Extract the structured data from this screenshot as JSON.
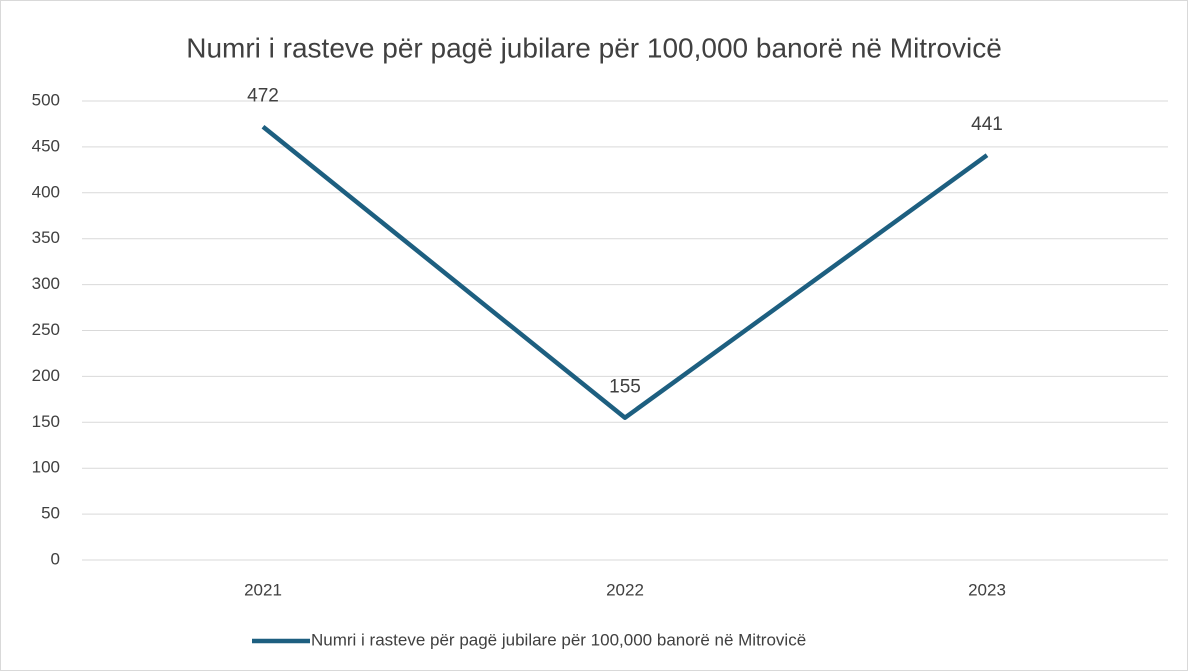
{
  "chart_data": {
    "type": "line",
    "title": "Numri i rasteve për pagë jubilare për 100,000 banorë në Mitrovicë",
    "categories": [
      "2021",
      "2022",
      "2023"
    ],
    "series": [
      {
        "name": "Numri i rasteve për pagë jubilare për 100,000 banorë në Mitrovicë",
        "color": "#1d5f80",
        "values": [
          472,
          155,
          441
        ]
      }
    ],
    "ylim": [
      0,
      500
    ],
    "yticks": [
      0,
      50,
      100,
      150,
      200,
      250,
      300,
      350,
      400,
      450,
      500
    ],
    "grid": true,
    "legend": "bottom"
  }
}
